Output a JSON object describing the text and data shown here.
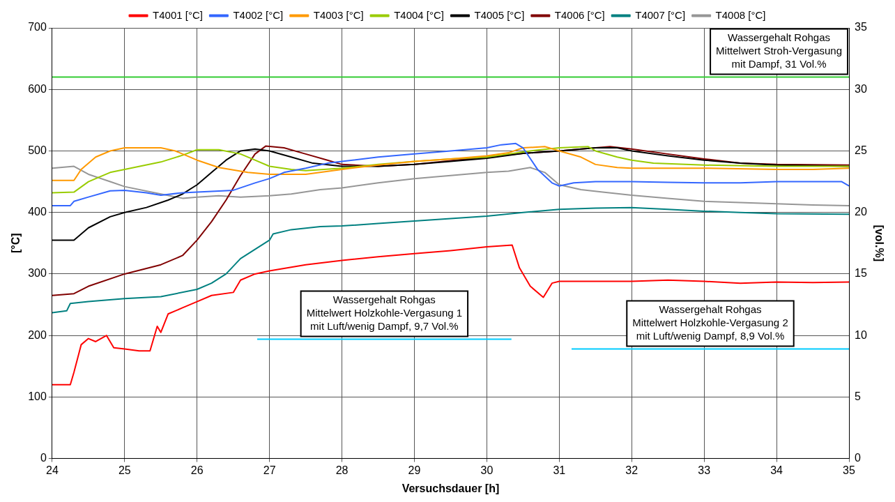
{
  "chart_data": {
    "type": "line",
    "xlabel": "Versuchsdauer [h]",
    "ylabel": "[°C]",
    "y2label": "[vol.%]",
    "xlim": [
      24,
      35
    ],
    "xticks": [
      24,
      25,
      26,
      27,
      28,
      29,
      30,
      31,
      32,
      33,
      34,
      35
    ],
    "ylim": [
      0,
      700
    ],
    "yticks": [
      0,
      100,
      200,
      300,
      400,
      500,
      600,
      700
    ],
    "y2lim": [
      0,
      35
    ],
    "y2ticks": [
      0,
      5,
      10,
      15,
      20,
      25,
      30,
      35
    ],
    "grid": true,
    "legend": "top",
    "marker": "none",
    "line_style": "solid",
    "series": [
      {
        "name": "T4001 [°C]",
        "color": "#ff0000",
        "x": [
          24,
          24.25,
          24.3,
          24.4,
          24.5,
          24.6,
          24.75,
          24.85,
          25,
          25.2,
          25.35,
          25.45,
          25.5,
          25.6,
          25.8,
          26,
          26.2,
          26.5,
          26.6,
          26.8,
          27,
          27.5,
          28,
          28.5,
          29,
          29.5,
          30,
          30.35,
          30.45,
          30.6,
          30.78,
          30.9,
          31,
          31.5,
          32,
          32.5,
          33,
          33.5,
          34,
          34.5,
          35
        ],
        "values": [
          120,
          120,
          140,
          185,
          195,
          190,
          200,
          180,
          178,
          175,
          175,
          215,
          205,
          235,
          245,
          255,
          265,
          270,
          290,
          300,
          305,
          315,
          322,
          328,
          333,
          338,
          344,
          347,
          310,
          280,
          262,
          285,
          288,
          288,
          288,
          290,
          288,
          285,
          287,
          286,
          287
        ]
      },
      {
        "name": "T4002 [°C]",
        "color": "#3366ff",
        "x": [
          24,
          24.25,
          24.3,
          24.5,
          24.8,
          25,
          25.3,
          25.5,
          25.8,
          26,
          26.5,
          26.8,
          27,
          27.2,
          27.5,
          27.8,
          28,
          28.5,
          29,
          29.5,
          30,
          30.2,
          30.4,
          30.5,
          30.7,
          30.9,
          31,
          31.2,
          31.5,
          32,
          32.5,
          33,
          33.5,
          34,
          34.5,
          34.9,
          35
        ],
        "values": [
          411,
          411,
          418,
          425,
          435,
          436,
          432,
          428,
          432,
          433,
          436,
          448,
          455,
          465,
          472,
          480,
          483,
          490,
          495,
          500,
          505,
          510,
          512,
          505,
          470,
          448,
          443,
          448,
          450,
          450,
          449,
          448,
          448,
          450,
          450,
          450,
          443
        ]
      },
      {
        "name": "T4003 [°C]",
        "color": "#ff9900",
        "x": [
          24,
          24.3,
          24.4,
          24.6,
          24.8,
          25,
          25.5,
          25.7,
          26,
          26.3,
          26.7,
          27,
          27.5,
          28,
          28.5,
          29,
          29.5,
          30,
          30.3,
          30.5,
          30.8,
          31,
          31.3,
          31.5,
          31.8,
          32,
          33,
          34,
          34.5,
          35
        ],
        "values": [
          452,
          452,
          470,
          490,
          500,
          505,
          505,
          500,
          485,
          473,
          465,
          462,
          462,
          470,
          477,
          483,
          487,
          492,
          497,
          505,
          507,
          500,
          490,
          478,
          473,
          472,
          472,
          470,
          470,
          472
        ]
      },
      {
        "name": "T4004 [°C]",
        "color": "#99cc00",
        "x": [
          24,
          24.3,
          24.5,
          24.8,
          25,
          25.5,
          25.8,
          26,
          26.3,
          26.6,
          26.8,
          27,
          27.3,
          27.5,
          28,
          28.5,
          29,
          29.5,
          30,
          30.3,
          30.6,
          31,
          31.4,
          31.5,
          31.8,
          32,
          32.3,
          33,
          34,
          35
        ],
        "values": [
          432,
          433,
          450,
          465,
          470,
          482,
          493,
          502,
          502,
          495,
          485,
          475,
          470,
          468,
          472,
          478,
          483,
          487,
          490,
          495,
          500,
          505,
          507,
          500,
          490,
          485,
          480,
          477,
          475,
          475
        ]
      },
      {
        "name": "T4005 [°C]",
        "color": "#000000",
        "x": [
          24,
          24.3,
          24.5,
          24.8,
          25,
          25.3,
          25.6,
          25.8,
          26,
          26.2,
          26.4,
          26.6,
          26.8,
          27,
          27.3,
          27.6,
          28,
          28.5,
          29,
          29.5,
          30,
          30.5,
          31,
          31.5,
          31.8,
          32,
          32.5,
          33,
          33.5,
          34,
          35
        ],
        "values": [
          355,
          355,
          375,
          393,
          400,
          408,
          420,
          430,
          445,
          465,
          485,
          500,
          503,
          500,
          490,
          480,
          475,
          475,
          478,
          483,
          488,
          496,
          500,
          505,
          505,
          500,
          492,
          485,
          480,
          477,
          475
        ]
      },
      {
        "name": "T4006 [°C]",
        "color": "#800000",
        "x": [
          24,
          24.3,
          24.5,
          25,
          25.5,
          25.8,
          26,
          26.2,
          26.4,
          26.6,
          26.8,
          26.95,
          27.2,
          27.5,
          27.8,
          28,
          28.5,
          29,
          29.5,
          30,
          30.5,
          31,
          31.5,
          31.7,
          32,
          32.5,
          33,
          33.5,
          34,
          35
        ],
        "values": [
          265,
          268,
          280,
          300,
          315,
          330,
          355,
          385,
          420,
          460,
          495,
          508,
          505,
          495,
          485,
          478,
          475,
          478,
          484,
          490,
          496,
          500,
          505,
          507,
          503,
          495,
          487,
          480,
          478,
          477
        ]
      },
      {
        "name": "T4007 [°C]",
        "color": "#008080",
        "x": [
          24,
          24.2,
          24.25,
          24.5,
          25,
          25.5,
          26,
          26.2,
          26.4,
          26.6,
          26.8,
          27,
          27.05,
          27.3,
          27.7,
          28,
          28.5,
          29,
          29.5,
          30,
          30.5,
          31,
          31.5,
          32,
          32.5,
          33,
          33.5,
          34,
          35
        ],
        "values": [
          237,
          240,
          252,
          255,
          260,
          263,
          275,
          285,
          300,
          325,
          340,
          355,
          365,
          372,
          377,
          378,
          382,
          386,
          390,
          394,
          400,
          405,
          407,
          408,
          405,
          402,
          400,
          398,
          397
        ]
      },
      {
        "name": "T4008 [°C]",
        "color": "#969696",
        "x": [
          24,
          24.3,
          24.5,
          24.8,
          25,
          25.5,
          25.8,
          26,
          26.3,
          26.6,
          27,
          27.3,
          27.7,
          28,
          28.5,
          29,
          29.5,
          30,
          30.3,
          30.6,
          30.8,
          31,
          31.3,
          31.6,
          32,
          32.5,
          33,
          33.5,
          34,
          34.5,
          35
        ],
        "values": [
          472,
          475,
          462,
          450,
          442,
          430,
          423,
          425,
          427,
          425,
          427,
          430,
          437,
          440,
          448,
          455,
          460,
          465,
          467,
          473,
          465,
          445,
          437,
          433,
          428,
          423,
          418,
          416,
          414,
          412,
          411
        ]
      },
      {
        "color": "#33cc33",
        "axis": "y2",
        "x": [
          24,
          35
        ],
        "values": [
          31,
          31
        ]
      },
      {
        "color": "#00ccff",
        "axis": "y2",
        "x": [
          26.83,
          30.34
        ],
        "values": [
          9.7,
          9.7
        ]
      },
      {
        "color": "#00ccff",
        "axis": "y2",
        "x": [
          31.17,
          35
        ],
        "values": [
          8.9,
          8.9
        ]
      }
    ],
    "annotations": [
      "Wassergehalt Rohgas\nMittelwert Stroh-Vergasung\nmit Dampf, 31 Vol.%",
      "Wassergehalt Rohgas\nMittelwert Holzkohle-Vergasung 1\nmit Luft/wenig Dampf, 9,7 Vol.%",
      "Wassergehalt Rohgas\nMittelwert Holzkohle-Vergasung 2\nmit Luft/wenig Dampf, 8,9 Vol.%"
    ]
  }
}
